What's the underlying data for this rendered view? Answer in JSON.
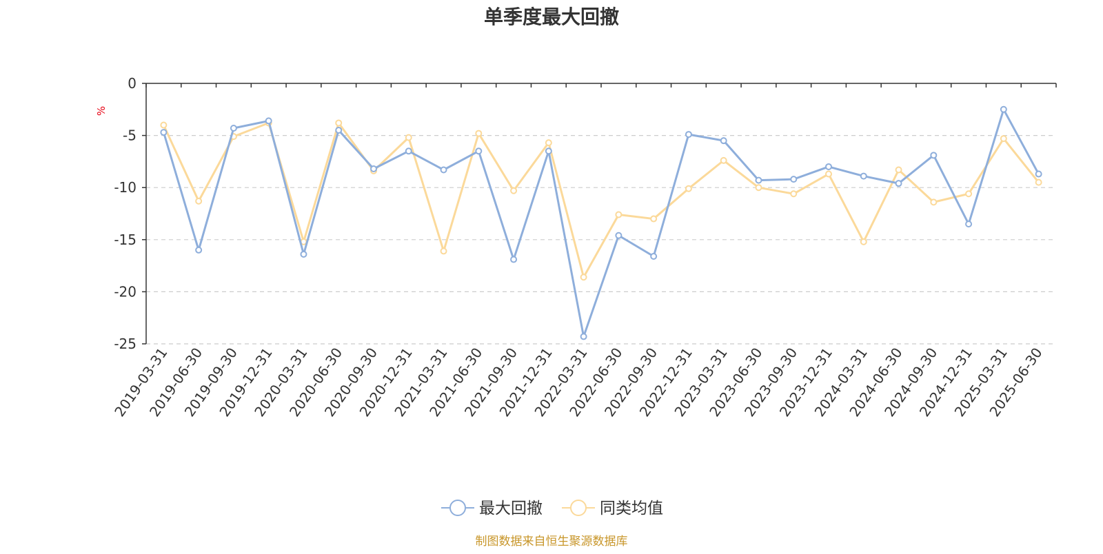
{
  "chart_data": {
    "type": "line",
    "title": "单季度最大回撤",
    "ylabel": "%",
    "ylim": [
      -25,
      0
    ],
    "yticks": [
      0,
      -5,
      -10,
      -15,
      -20,
      -25
    ],
    "grid": true,
    "legend": "bottom-center",
    "categories": [
      "2019-03-31",
      "2019-06-30",
      "2019-09-30",
      "2019-12-31",
      "2020-03-31",
      "2020-06-30",
      "2020-09-30",
      "2020-12-31",
      "2021-03-31",
      "2021-06-30",
      "2021-09-30",
      "2021-12-31",
      "2022-03-31",
      "2022-06-30",
      "2022-09-30",
      "2022-12-31",
      "2023-03-31",
      "2023-06-30",
      "2023-09-30",
      "2023-12-31",
      "2024-03-31",
      "2024-06-30",
      "2024-09-30",
      "2024-12-31",
      "2025-03-31",
      "2025-06-30"
    ],
    "series": [
      {
        "name": "最大回撤",
        "color": "#8eaedb",
        "values": [
          -4.7,
          -16.0,
          -4.3,
          -3.6,
          -16.4,
          -4.5,
          -8.2,
          -6.5,
          -8.3,
          -6.5,
          -16.9,
          -6.5,
          -24.3,
          -14.6,
          -16.6,
          -4.9,
          -5.5,
          -9.3,
          -9.2,
          -8.0,
          -8.9,
          -9.6,
          -6.9,
          -13.5,
          -2.5,
          -8.7
        ]
      },
      {
        "name": "同类均值",
        "color": "#fbd99a",
        "values": [
          -4.0,
          -11.3,
          -5.1,
          -3.8,
          -15.2,
          -3.8,
          -8.4,
          -5.2,
          -16.1,
          -4.8,
          -10.3,
          -5.7,
          -18.6,
          -12.6,
          -13.0,
          -10.1,
          -7.4,
          -10.0,
          -10.6,
          -8.7,
          -15.2,
          -8.3,
          -11.4,
          -10.6,
          -5.3,
          -9.5
        ]
      }
    ],
    "source_note": "制图数据来自恒生聚源数据库"
  },
  "colors": {
    "title": "#333333",
    "axis": "#333333",
    "grid": "#cccccc",
    "ylabel": "#e60012",
    "source": "#c8962a"
  }
}
